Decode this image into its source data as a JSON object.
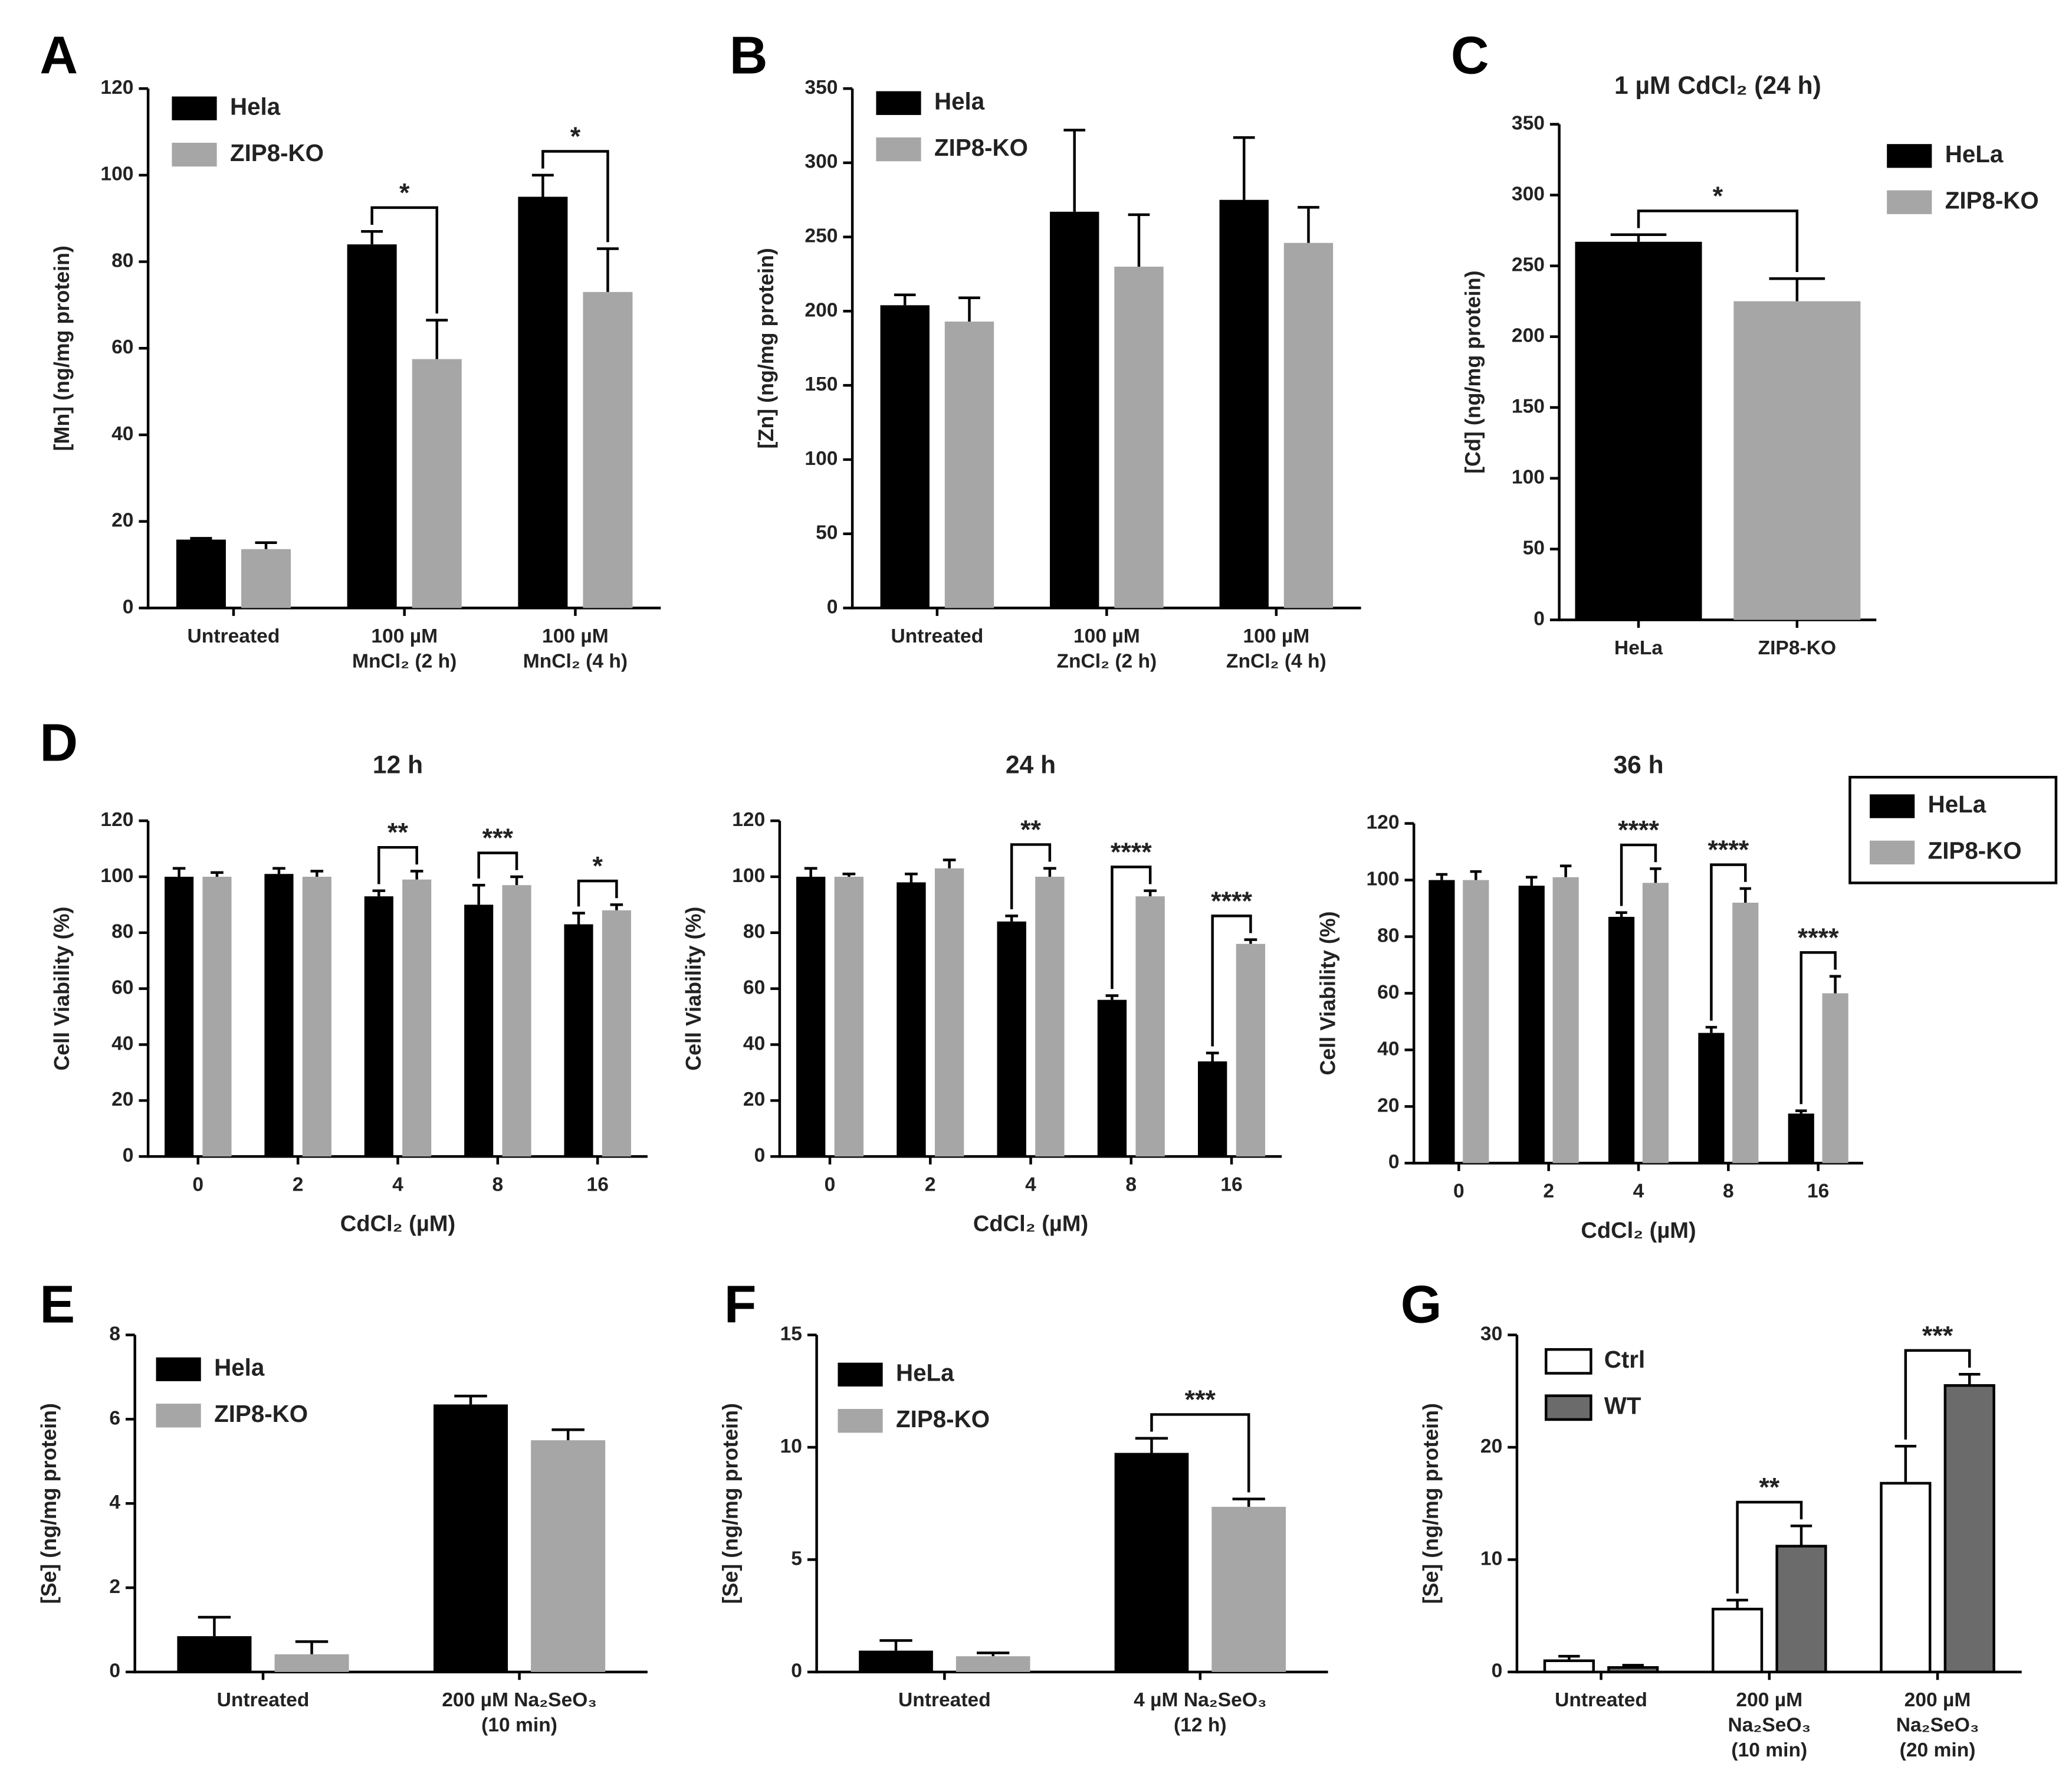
{
  "chart_data": [
    {
      "type": "bar",
      "label": "A",
      "ylabel": "[Mn] (ng/mg protein)",
      "categories": [
        "Untreated",
        "100 µM\nMnCl₂ (2 h)",
        "100 µM\nMnCl₂ (4 h)"
      ],
      "series": [
        {
          "name": "Hela",
          "color": "#000000",
          "values": [
            15.8,
            84,
            95
          ],
          "errors": [
            0.3,
            3,
            5
          ]
        },
        {
          "name": "ZIP8-KO",
          "color": "#a6a6a6",
          "values": [
            13.6,
            57.5,
            73
          ],
          "errors": [
            1.5,
            9,
            10
          ]
        }
      ],
      "ylim": [
        0,
        120
      ],
      "yticks": [
        0,
        20,
        40,
        60,
        80,
        100,
        120
      ],
      "legend": "upper left",
      "significance": [
        {
          "category": "100 µM\nMnCl₂ (2 h)",
          "label": "*"
        },
        {
          "category": "100 µM\nMnCl₂ (4 h)",
          "label": "*"
        }
      ]
    },
    {
      "type": "bar",
      "label": "B",
      "ylabel": "[Zn] (ng/mg protein)",
      "categories": [
        "Untreated",
        "100 µM\nZnCl₂ (2 h)",
        "100 µM\nZnCl₂ (4 h)"
      ],
      "series": [
        {
          "name": "Hela",
          "color": "#000000",
          "values": [
            204,
            267,
            275
          ],
          "errors": [
            7,
            55,
            42
          ]
        },
        {
          "name": "ZIP8-KO",
          "color": "#a6a6a6",
          "values": [
            193,
            230,
            246
          ],
          "errors": [
            16,
            35,
            24
          ]
        }
      ],
      "ylim": [
        0,
        350
      ],
      "yticks": [
        0,
        50,
        100,
        150,
        200,
        250,
        300,
        350
      ],
      "legend": "upper left"
    },
    {
      "type": "bar",
      "label": "C",
      "title": "1 µM CdCl₂ (24 h)",
      "ylabel": "[Cd] (ng/mg protein)",
      "categories": [
        "HeLa",
        "ZIP8-KO"
      ],
      "values": [
        267,
        225
      ],
      "errors": [
        5,
        16
      ],
      "colors": [
        "#000000",
        "#a6a6a6"
      ],
      "legend_labels": [
        "HeLa",
        "ZIP8-KO"
      ],
      "ylim": [
        0,
        350
      ],
      "yticks": [
        0,
        50,
        100,
        150,
        200,
        250,
        300,
        350
      ],
      "legend": "right",
      "significance": [
        {
          "label": "*"
        }
      ]
    },
    {
      "type": "bar",
      "label": "D",
      "title": "12 h",
      "ylabel": "Cell Viability (%)",
      "xlabel": "CdCl₂ (µM)",
      "categories": [
        "0",
        "2",
        "4",
        "8",
        "16"
      ],
      "series": [
        {
          "color": "#000000",
          "values": [
            100,
            101,
            93,
            90,
            83
          ],
          "errors": [
            3,
            2,
            2,
            7,
            4
          ]
        },
        {
          "color": "#a6a6a6",
          "values": [
            100,
            100,
            99,
            97,
            88
          ],
          "errors": [
            1.5,
            2,
            3,
            3,
            2
          ]
        }
      ],
      "ylim": [
        0,
        120
      ],
      "yticks": [
        0,
        20,
        40,
        60,
        80,
        100,
        120
      ],
      "significance": [
        {
          "category": "4",
          "label": "**"
        },
        {
          "category": "8",
          "label": "***"
        },
        {
          "category": "16",
          "label": "*"
        }
      ]
    },
    {
      "type": "bar",
      "title": "24 h",
      "ylabel": "Cell Viability (%)",
      "xlabel": "CdCl₂ (µM)",
      "categories": [
        "0",
        "2",
        "4",
        "8",
        "16"
      ],
      "series": [
        {
          "color": "#000000",
          "values": [
            100,
            98,
            84,
            56,
            34
          ],
          "errors": [
            3,
            3,
            2,
            1.5,
            3
          ]
        },
        {
          "color": "#a6a6a6",
          "values": [
            100,
            103,
            100,
            93,
            76
          ],
          "errors": [
            1,
            3,
            3,
            2,
            1.5
          ]
        }
      ],
      "ylim": [
        0,
        120
      ],
      "yticks": [
        0,
        20,
        40,
        60,
        80,
        100,
        120
      ],
      "significance": [
        {
          "category": "4",
          "label": "**"
        },
        {
          "category": "8",
          "label": "****"
        },
        {
          "category": "16",
          "label": "****"
        }
      ]
    },
    {
      "type": "bar",
      "title": "36 h",
      "ylabel": "Cell Viability (%)",
      "xlabel": "CdCl₂ (µM)",
      "categories": [
        "0",
        "2",
        "4",
        "8",
        "16"
      ],
      "series": [
        {
          "name": "HeLa",
          "color": "#000000",
          "values": [
            100,
            98,
            87,
            46,
            17.5
          ],
          "errors": [
            2,
            3,
            1.5,
            2,
            1
          ]
        },
        {
          "name": "ZIP8-KO",
          "color": "#a6a6a6",
          "values": [
            100,
            101,
            99,
            92,
            60
          ],
          "errors": [
            3,
            4,
            5,
            5,
            6
          ]
        }
      ],
      "ylim": [
        0,
        120
      ],
      "yticks": [
        0,
        20,
        40,
        60,
        80,
        100,
        120
      ],
      "legend": "right",
      "legend_frame": true,
      "significance": [
        {
          "category": "4",
          "label": "****"
        },
        {
          "category": "8",
          "label": "****"
        },
        {
          "category": "16",
          "label": "****"
        }
      ]
    },
    {
      "type": "bar",
      "label": "E",
      "ylabel": "[Se] (ng/mg protein)",
      "categories": [
        "Untreated",
        "200 µM Na₂SeO₃\n(10 min)"
      ],
      "series": [
        {
          "name": "Hela",
          "color": "#000000",
          "values": [
            0.85,
            6.35
          ],
          "errors": [
            0.45,
            0.2
          ]
        },
        {
          "name": "ZIP8-KO",
          "color": "#a6a6a6",
          "values": [
            0.42,
            5.5
          ],
          "errors": [
            0.3,
            0.25
          ]
        }
      ],
      "ylim": [
        0,
        8
      ],
      "yticks": [
        0,
        2,
        4,
        6,
        8
      ],
      "legend": "upper left"
    },
    {
      "type": "bar",
      "label": "F",
      "ylabel": "[Se] (ng/mg protein)",
      "categories": [
        "Untreated",
        "4 µM Na₂SeO₃\n(12 h)"
      ],
      "series": [
        {
          "name": "HeLa",
          "color": "#000000",
          "values": [
            0.95,
            9.75
          ],
          "errors": [
            0.45,
            0.65
          ]
        },
        {
          "name": "ZIP8-KO",
          "color": "#a6a6a6",
          "values": [
            0.7,
            7.35
          ],
          "errors": [
            0.15,
            0.35
          ]
        }
      ],
      "ylim": [
        0,
        15
      ],
      "yticks": [
        0,
        5,
        10,
        15
      ],
      "legend": "upper left",
      "significance": [
        {
          "category": "4 µM Na₂SeO₃\n(12 h)",
          "label": "***"
        }
      ]
    },
    {
      "type": "bar",
      "label": "G",
      "ylabel": "[Se] (ng/mg protein)",
      "categories": [
        "Untreated",
        "200 µM\nNa₂SeO₃\n(10 min)",
        "200 µM\nNa₂SeO₃\n(20 min)"
      ],
      "series": [
        {
          "name": "Ctrl",
          "color": "#ffffff",
          "edgecolor": "#000000",
          "values": [
            1,
            5.6,
            16.8
          ],
          "errors": [
            0.4,
            0.8,
            3.3
          ]
        },
        {
          "name": "WT",
          "color": "#6b6b6b",
          "edgecolor": "#000000",
          "values": [
            0.4,
            11.2,
            25.5
          ],
          "errors": [
            0.2,
            1.8,
            1
          ]
        }
      ],
      "ylim": [
        0,
        30
      ],
      "yticks": [
        0,
        10,
        20,
        30
      ],
      "legend": "upper left",
      "significance": [
        {
          "category": "200 µM\nNa₂SeO₃\n(10 min)",
          "label": "**"
        },
        {
          "category": "200 µM\nNa₂SeO₃\n(20 min)",
          "label": "***"
        }
      ]
    }
  ]
}
